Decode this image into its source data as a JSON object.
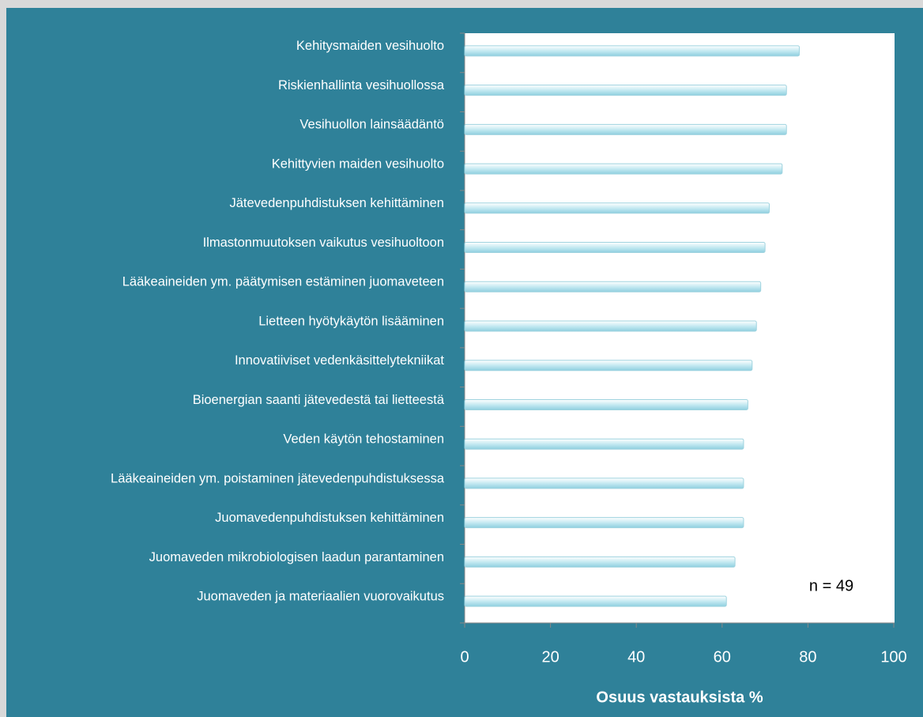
{
  "chart_data": {
    "type": "barh",
    "categories": [
      "Kehitysmaiden vesihuolto",
      "Riskienhallinta vesihuollossa",
      "Vesihuollon lainsäädäntö",
      "Kehittyvien maiden vesihuolto",
      "Jätevedenpuhdistuksen kehittäminen",
      "Ilmastonmuutoksen vaikutus vesihuoltoon",
      "Lääkeaineiden ym. päätymisen estäminen juomaveteen",
      "Lietteen hyötykäytön lisääminen",
      "Innovatiiviset vedenkäsittelytekniikat",
      "Bioenergian saanti jätevedestä tai lietteestä",
      "Veden käytön tehostaminen",
      "Lääkeaineiden ym. poistaminen jätevedenpuhdistuksessa",
      "Juomavedenpuhdistuksen kehittäminen",
      "Juomaveden mikrobiologisen laadun parantaminen",
      "Juomaveden ja materiaalien vuorovaikutus"
    ],
    "values": [
      78,
      75,
      75,
      74,
      71,
      70,
      69,
      68,
      67,
      66,
      65,
      65,
      65,
      63,
      61
    ],
    "color": "#bfe7f0",
    "xlabel": "Osuus vastauksista %",
    "annotation": "n = 49",
    "xlim": [
      0,
      100
    ],
    "xticks": [
      0,
      20,
      40,
      60,
      80,
      100
    ]
  }
}
